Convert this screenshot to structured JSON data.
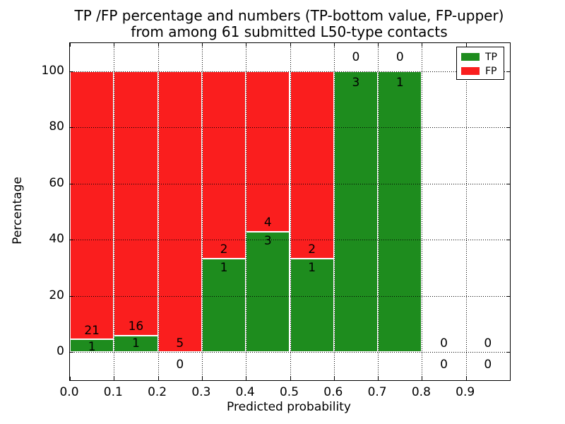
{
  "title": {
    "line1": "TP /FP percentage and numbers (TP-bottom value, FP-upper)",
    "line2": "from among 61 submitted L50-type contacts"
  },
  "axes": {
    "xlabel": "Predicted probability",
    "ylabel": "Percentage",
    "xtick_labels": [
      "0.0",
      "0.1",
      "0.2",
      "0.3",
      "0.4",
      "0.5",
      "0.6",
      "0.7",
      "0.8",
      "0.9"
    ],
    "ytick_labels": [
      "0",
      "20",
      "40",
      "60",
      "80",
      "100"
    ]
  },
  "legend": {
    "items": [
      {
        "label": "TP",
        "color": "#1e8c1e"
      },
      {
        "label": "FP",
        "color": "#fa1e1e"
      }
    ]
  },
  "colors": {
    "tp_green": "#1e8c1e",
    "fp_red": "#fa1e1e",
    "bar_edge": "#ffffff",
    "grid": "#000000",
    "text": "#000000",
    "background": "#ffffff"
  },
  "chart_data": {
    "type": "bar",
    "stacked": true,
    "normalized_to_percent": true,
    "title": "TP /FP percentage and numbers (TP-bottom value, FP-upper) from among 61 submitted L50-type contacts",
    "total_contacts": 61,
    "xlabel": "Predicted probability",
    "ylabel": "Percentage",
    "xlim": [
      0.0,
      1.0
    ],
    "ylim": [
      -10,
      110
    ],
    "xticks": [
      0.0,
      0.1,
      0.2,
      0.3,
      0.4,
      0.5,
      0.6,
      0.7,
      0.8,
      0.9
    ],
    "yticks": [
      0,
      20,
      40,
      60,
      80,
      100
    ],
    "grid": true,
    "grid_style": "dotted",
    "legend_position": "upper right",
    "series": [
      {
        "name": "TP",
        "color": "#1e8c1e",
        "counts": [
          1,
          1,
          0,
          1,
          3,
          1,
          3,
          1,
          0,
          0
        ]
      },
      {
        "name": "FP",
        "color": "#fa1e1e",
        "counts": [
          21,
          16,
          5,
          2,
          4,
          2,
          0,
          0,
          0,
          0
        ]
      }
    ],
    "bins": [
      {
        "x0": 0.0,
        "x1": 0.1,
        "tp": 1,
        "fp": 21,
        "tp_pct": 4.5
      },
      {
        "x0": 0.1,
        "x1": 0.2,
        "tp": 1,
        "fp": 16,
        "tp_pct": 5.9
      },
      {
        "x0": 0.2,
        "x1": 0.3,
        "tp": 0,
        "fp": 5,
        "tp_pct": 0.0
      },
      {
        "x0": 0.3,
        "x1": 0.4,
        "tp": 1,
        "fp": 2,
        "tp_pct": 33.3
      },
      {
        "x0": 0.4,
        "x1": 0.5,
        "tp": 3,
        "fp": 4,
        "tp_pct": 42.9
      },
      {
        "x0": 0.5,
        "x1": 0.6,
        "tp": 1,
        "fp": 2,
        "tp_pct": 33.3
      },
      {
        "x0": 0.6,
        "x1": 0.7,
        "tp": 3,
        "fp": 0,
        "tp_pct": 100.0
      },
      {
        "x0": 0.7,
        "x1": 0.8,
        "tp": 1,
        "fp": 0,
        "tp_pct": 100.0
      },
      {
        "x0": 0.8,
        "x1": 0.9,
        "tp": 0,
        "fp": 0,
        "tp_pct": 0.0
      },
      {
        "x0": 0.9,
        "x1": 1.0,
        "tp": 0,
        "fp": 0,
        "tp_pct": 0.0
      }
    ]
  }
}
